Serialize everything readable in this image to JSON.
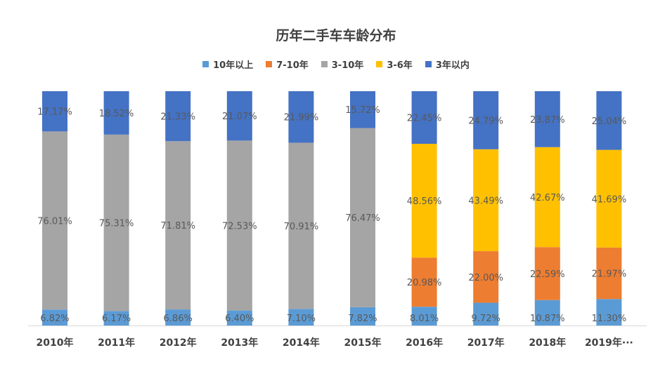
{
  "chart_data": {
    "type": "bar",
    "stacked": true,
    "title": "历年二手车车龄分布",
    "legend_position": "top",
    "categories": [
      "2010年",
      "2011年",
      "2012年",
      "2013年",
      "2014年",
      "2015年",
      "2016年",
      "2017年",
      "2018年",
      "2019年···"
    ],
    "series": [
      {
        "name": "10年以上",
        "color": "#5b9bd5",
        "values": [
          6.82,
          6.17,
          6.86,
          6.4,
          7.1,
          7.82,
          8.01,
          9.72,
          10.87,
          11.3
        ],
        "labels": [
          "6.82%",
          "6.17%",
          "6.86%",
          "6.40%",
          "7.10%",
          "7.82%",
          "8.01%",
          "9.72%",
          "10.87%",
          "11.30%"
        ]
      },
      {
        "name": "7-10年",
        "color": "#ed7d31",
        "values": [
          null,
          null,
          null,
          null,
          null,
          null,
          20.98,
          22.0,
          22.59,
          21.97
        ],
        "labels": [
          "",
          "",
          "",
          "",
          "",
          "",
          "20.98%",
          "22.00%",
          "22.59%",
          "21.97%"
        ]
      },
      {
        "name": "3-10年",
        "color": "#a5a5a5",
        "values": [
          76.01,
          75.31,
          71.81,
          72.53,
          70.91,
          76.47,
          null,
          null,
          null,
          null
        ],
        "labels": [
          "76.01%",
          "75.31%",
          "71.81%",
          "72.53%",
          "70.91%",
          "76.47%",
          "",
          "",
          "",
          ""
        ]
      },
      {
        "name": "3-6年",
        "color": "#ffc000",
        "values": [
          null,
          null,
          null,
          null,
          null,
          null,
          48.56,
          43.49,
          42.67,
          41.69
        ],
        "labels": [
          "",
          "",
          "",
          "",
          "",
          "",
          "48.56%",
          "43.49%",
          "42.67%",
          "41.69%"
        ]
      },
      {
        "name": "3年以内",
        "color": "#4472c4",
        "values": [
          17.17,
          18.52,
          21.33,
          21.07,
          21.99,
          15.72,
          22.45,
          24.79,
          23.87,
          25.04
        ],
        "labels": [
          "17.17%",
          "18.52%",
          "21.33%",
          "21.07%",
          "21.99%",
          "15.72%",
          "22.45%",
          "24.79%",
          "23.87%",
          "25.04%"
        ]
      }
    ],
    "ylim": [
      0,
      100
    ],
    "grid": false
  }
}
